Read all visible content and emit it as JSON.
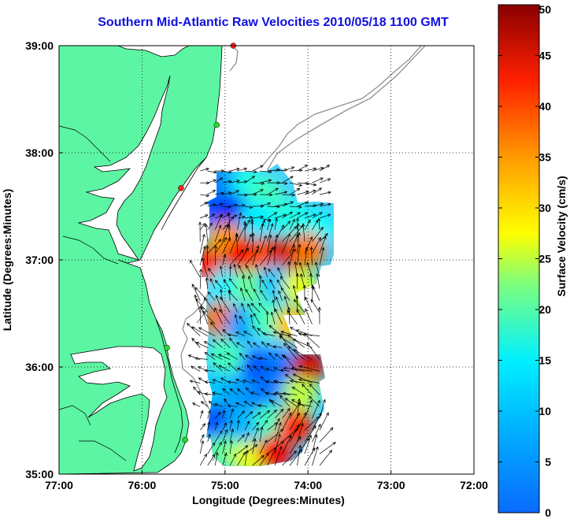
{
  "title": "Southern Mid-Atlantic Raw Velocities 2010/05/18 1100 GMT",
  "axes": {
    "x_label": "Longitude (Degrees:Minutes)",
    "y_label": "Latitude (Degrees:Minutes)",
    "x_ticks": [
      {
        "value": -77,
        "label": "77:00"
      },
      {
        "value": -76,
        "label": "76:00"
      },
      {
        "value": -75,
        "label": "75:00"
      },
      {
        "value": -74,
        "label": "74:00"
      },
      {
        "value": -73,
        "label": "73:00"
      },
      {
        "value": -72,
        "label": "72:00"
      }
    ],
    "y_ticks": [
      {
        "value": 35,
        "label": "35:00"
      },
      {
        "value": 36,
        "label": "36:00"
      },
      {
        "value": 37,
        "label": "37:00"
      },
      {
        "value": 38,
        "label": "38:00"
      },
      {
        "value": 39,
        "label": "39:00"
      }
    ],
    "x_range": [
      -77,
      -72
    ],
    "y_range": [
      35,
      39
    ],
    "grid": "dotted"
  },
  "colorbar": {
    "label": "Surface Velocity (cm/s)",
    "range": [
      0,
      50
    ],
    "ticks": [
      "0",
      "5",
      "10",
      "15",
      "20",
      "25",
      "30",
      "35",
      "40",
      "45",
      "50"
    ],
    "colormap": "jet"
  },
  "colors": {
    "land": "#5cf5a3",
    "water": "#ffffff",
    "coastline": "#000000",
    "bathymetry": "#909090",
    "title": "#1010e0",
    "vectors": "#000000",
    "station": "#2fd62f",
    "station_alt": "#ff2020"
  },
  "stations": [
    {
      "lon": -74.9,
      "lat": 39.0,
      "color": "#ff2020"
    },
    {
      "lon": -75.1,
      "lat": 38.26,
      "color": "#2fd62f"
    },
    {
      "lon": -75.53,
      "lat": 37.67,
      "color": "#ff2020"
    },
    {
      "lon": -75.7,
      "lat": 36.18,
      "color": "#2fd62f"
    },
    {
      "lon": -75.48,
      "lat": 35.32,
      "color": "#2fd62f"
    }
  ],
  "velocity_field": [
    {
      "lon": -75.1,
      "lat": 37.7,
      "speed": 12
    },
    {
      "lon": -74.9,
      "lat": 37.7,
      "speed": 14
    },
    {
      "lon": -74.7,
      "lat": 37.7,
      "speed": 20
    },
    {
      "lon": -74.5,
      "lat": 37.6,
      "speed": 22
    },
    {
      "lon": -75.1,
      "lat": 37.45,
      "speed": 10
    },
    {
      "lon": -74.9,
      "lat": 37.45,
      "speed": 8
    },
    {
      "lon": -74.6,
      "lat": 37.4,
      "speed": 18
    },
    {
      "lon": -74.2,
      "lat": 37.4,
      "speed": 20
    },
    {
      "lon": -73.9,
      "lat": 37.3,
      "speed": 19
    },
    {
      "lon": -75.0,
      "lat": 37.2,
      "speed": 36
    },
    {
      "lon": -74.8,
      "lat": 37.05,
      "speed": 44
    },
    {
      "lon": -74.5,
      "lat": 37.05,
      "speed": 40
    },
    {
      "lon": -74.25,
      "lat": 37.05,
      "speed": 46
    },
    {
      "lon": -74.0,
      "lat": 37.1,
      "speed": 38
    },
    {
      "lon": -75.25,
      "lat": 36.95,
      "speed": 42
    },
    {
      "lon": -75.0,
      "lat": 36.75,
      "speed": 18
    },
    {
      "lon": -74.7,
      "lat": 36.75,
      "speed": 24
    },
    {
      "lon": -74.4,
      "lat": 36.8,
      "speed": 16
    },
    {
      "lon": -74.1,
      "lat": 36.75,
      "speed": 30
    },
    {
      "lon": -75.05,
      "lat": 36.45,
      "speed": 38
    },
    {
      "lon": -74.8,
      "lat": 36.4,
      "speed": 14
    },
    {
      "lon": -74.5,
      "lat": 36.45,
      "speed": 22
    },
    {
      "lon": -74.2,
      "lat": 36.4,
      "speed": 34
    },
    {
      "lon": -75.0,
      "lat": 36.1,
      "speed": 22
    },
    {
      "lon": -74.6,
      "lat": 36.0,
      "speed": 10
    },
    {
      "lon": -74.35,
      "lat": 36.0,
      "speed": 12
    },
    {
      "lon": -74.0,
      "lat": 36.0,
      "speed": 46
    },
    {
      "lon": -75.1,
      "lat": 35.8,
      "speed": 16
    },
    {
      "lon": -74.8,
      "lat": 35.75,
      "speed": 14
    },
    {
      "lon": -74.5,
      "lat": 35.7,
      "speed": 12
    },
    {
      "lon": -74.1,
      "lat": 35.75,
      "speed": 28
    },
    {
      "lon": -75.1,
      "lat": 35.5,
      "speed": 10
    },
    {
      "lon": -74.8,
      "lat": 35.45,
      "speed": 15
    },
    {
      "lon": -74.45,
      "lat": 35.5,
      "speed": 22
    },
    {
      "lon": -74.15,
      "lat": 35.45,
      "speed": 42
    },
    {
      "lon": -75.0,
      "lat": 35.2,
      "speed": 24
    },
    {
      "lon": -74.7,
      "lat": 35.15,
      "speed": 30
    },
    {
      "lon": -74.4,
      "lat": 35.2,
      "speed": 44
    }
  ],
  "vector_flow": [
    {
      "lat_min": 37.3,
      "lat_max": 37.9,
      "direction_deg": 80
    },
    {
      "lat_min": 36.85,
      "lat_max": 37.3,
      "direction_deg": 20
    },
    {
      "lat_min": 36.3,
      "lat_max": 36.85,
      "direction_deg": 340
    },
    {
      "lat_min": 35.6,
      "lat_max": 36.3,
      "direction_deg": 300
    },
    {
      "lat_min": 35.05,
      "lat_max": 35.6,
      "direction_deg": 30
    }
  ]
}
